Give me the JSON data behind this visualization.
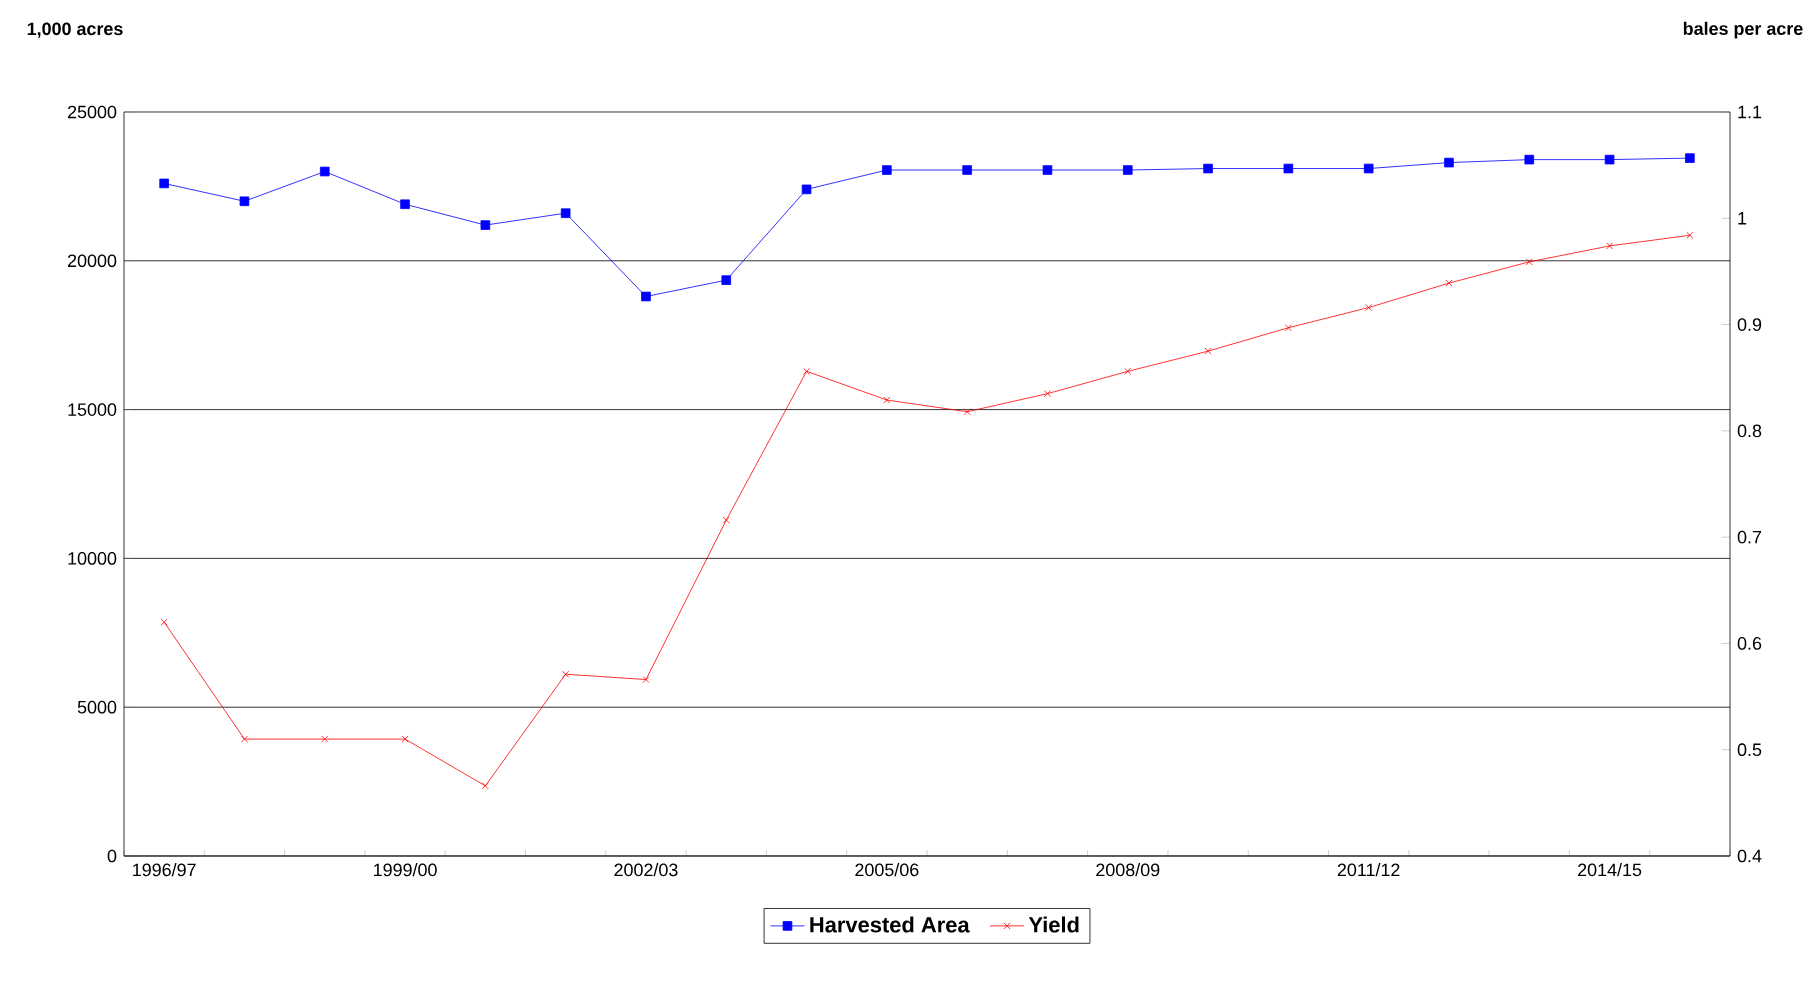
{
  "chart_data": {
    "type": "line",
    "categories": [
      "1996/97",
      null,
      null,
      "1999/00",
      null,
      null,
      "2002/03",
      null,
      null,
      "2005/06",
      null,
      null,
      "2008/09",
      null,
      null,
      "2011/12",
      null,
      null,
      "2014/15",
      null
    ],
    "ylabel": "1,000 acres",
    "y2label": "bales per acre",
    "series": [
      {
        "name": "Harvested Area",
        "color": "#0000ff",
        "marker": "square",
        "values": [
          22600,
          22000,
          23000,
          21900,
          21200,
          21600,
          18800,
          19350,
          22400,
          23050,
          23050,
          23050,
          23050,
          23100,
          23100,
          23100,
          23300,
          23400,
          23400,
          23450
        ]
      },
      {
        "name": "Yield",
        "color": "#ff0000",
        "marker": "cross",
        "axis": "y2",
        "values": [
          0.62,
          0.51,
          0.51,
          0.51,
          0.466,
          0.571,
          0.566,
          0.716,
          0.856,
          0.829,
          0.818,
          0.835,
          0.856,
          0.875,
          0.897,
          0.916,
          0.939,
          0.959,
          0.974,
          0.984
        ]
      }
    ],
    "ylim": [
      0,
      25000
    ],
    "yticks": [
      0,
      5000,
      10000,
      15000,
      20000,
      25000
    ],
    "y2lim": [
      0.4,
      1.1
    ],
    "y2ticks": [
      0.4,
      0.5,
      0.6,
      0.7,
      0.8,
      0.9,
      1,
      1.1
    ],
    "grid": "y",
    "legend": "bottom"
  }
}
